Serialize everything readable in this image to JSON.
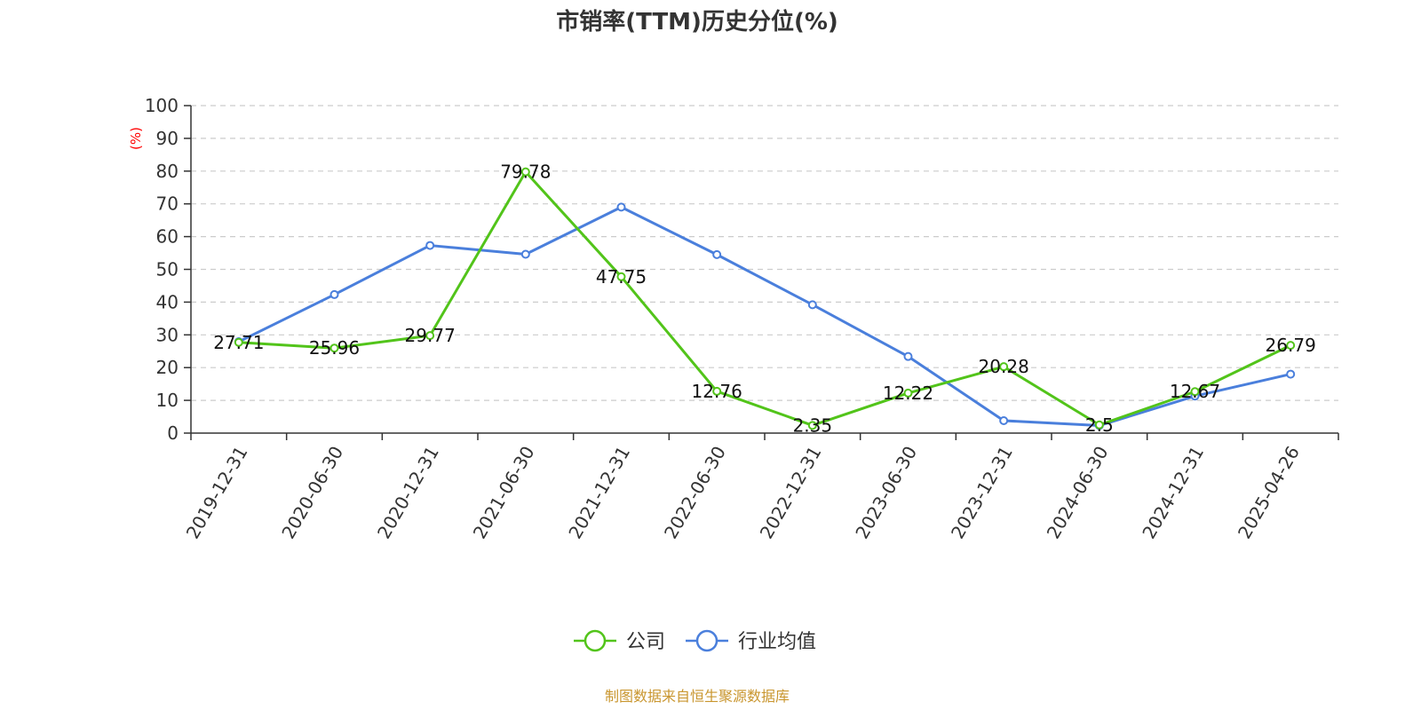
{
  "chart_data": {
    "type": "line",
    "title": "市销率(TTM)历史分位(%)",
    "ylabel": "(%)",
    "xlabel": "",
    "ylim": [
      0,
      100
    ],
    "yticks": [
      0,
      10,
      20,
      30,
      40,
      50,
      60,
      70,
      80,
      90,
      100
    ],
    "categories": [
      "2019-12-31",
      "2020-06-30",
      "2020-12-31",
      "2021-06-30",
      "2021-12-31",
      "2022-06-30",
      "2022-12-31",
      "2023-06-30",
      "2023-12-31",
      "2024-06-30",
      "2024-12-31",
      "2025-04-26"
    ],
    "grid": true,
    "legend_position": "bottom-center",
    "series": [
      {
        "name": "公司",
        "color": "#52c41a",
        "values": [
          27.71,
          25.96,
          29.77,
          79.78,
          47.75,
          12.76,
          2.35,
          12.22,
          20.28,
          2.5,
          12.67,
          26.79
        ],
        "labels": [
          "27.71",
          "25.96",
          "29.77",
          "79.78",
          "47.75",
          "12.76",
          "2.35",
          "12.22",
          "20.28",
          "2.5",
          "12.67",
          "26.79"
        ]
      },
      {
        "name": "行业均值",
        "color": "#4a7fdc",
        "values": [
          27.9,
          42.3,
          57.3,
          54.6,
          69.0,
          54.5,
          39.2,
          23.4,
          3.8,
          2.3,
          11.3,
          18.0
        ]
      }
    ],
    "source": "制图数据来自恒生聚源数据库",
    "source_color": "#c9962f"
  }
}
